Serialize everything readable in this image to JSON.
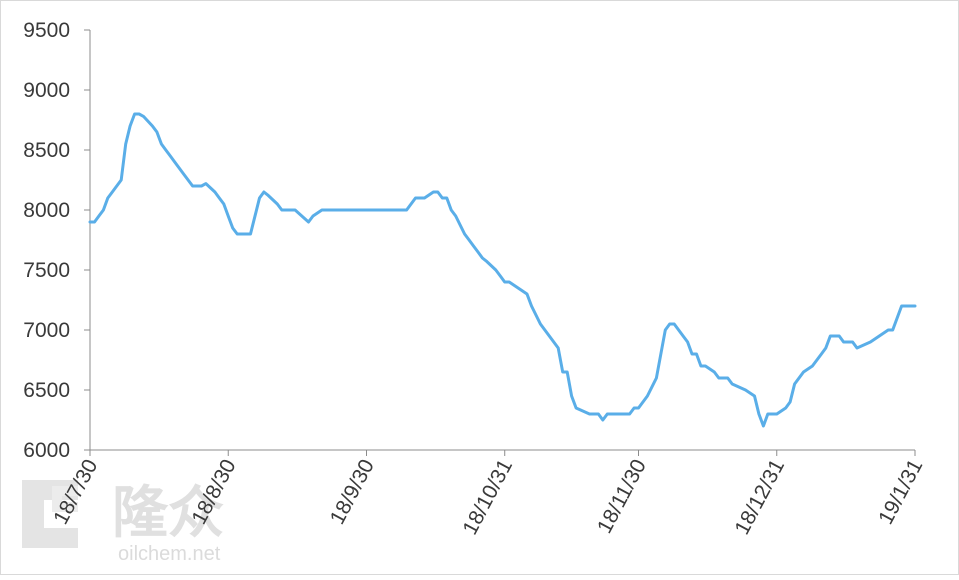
{
  "watermark": {
    "brand": "隆众",
    "url": "oilchem.net"
  },
  "chart_data": {
    "type": "line",
    "title": "",
    "xlabel": "",
    "ylabel": "",
    "ylim": [
      6000,
      9500
    ],
    "yticks": [
      6000,
      6500,
      7000,
      7500,
      8000,
      8500,
      9000,
      9500
    ],
    "grid": false,
    "legend": "none",
    "x_tick_labels": [
      "18/7/30",
      "18/8/30",
      "18/9/30",
      "18/10/31",
      "18/11/30",
      "18/12/31",
      "19/1/31"
    ],
    "colors": {
      "line": "#5aaee8",
      "axis": "#8c8c8c",
      "text": "#3a3a3a"
    },
    "series": [
      {
        "x": [
          "2018-07-30",
          "2018-07-31",
          "2018-08-01",
          "2018-08-02",
          "2018-08-03",
          "2018-08-04",
          "2018-08-06",
          "2018-08-07",
          "2018-08-08",
          "2018-08-09",
          "2018-08-10",
          "2018-08-11",
          "2018-08-13",
          "2018-08-14",
          "2018-08-15",
          "2018-08-16",
          "2018-08-17",
          "2018-08-18",
          "2018-08-20",
          "2018-08-21",
          "2018-08-22",
          "2018-08-23",
          "2018-08-24",
          "2018-08-25",
          "2018-08-27",
          "2018-08-28",
          "2018-08-29",
          "2018-08-30",
          "2018-08-31",
          "2018-09-01",
          "2018-09-03",
          "2018-09-04",
          "2018-09-05",
          "2018-09-06",
          "2018-09-07",
          "2018-09-08",
          "2018-09-10",
          "2018-09-11",
          "2018-09-12",
          "2018-09-14",
          "2018-09-17",
          "2018-09-18",
          "2018-09-20",
          "2018-09-28",
          "2018-10-08",
          "2018-10-09",
          "2018-10-11",
          "2018-10-12",
          "2018-10-13",
          "2018-10-15",
          "2018-10-16",
          "2018-10-17",
          "2018-10-18",
          "2018-10-19",
          "2018-10-20",
          "2018-10-22",
          "2018-10-23",
          "2018-10-24",
          "2018-10-25",
          "2018-10-26",
          "2018-10-27",
          "2018-10-29",
          "2018-10-30",
          "2018-10-31",
          "2018-11-01",
          "2018-11-03",
          "2018-11-05",
          "2018-11-06",
          "2018-11-08",
          "2018-11-10",
          "2018-11-12",
          "2018-11-13",
          "2018-11-14",
          "2018-11-15",
          "2018-11-16",
          "2018-11-19",
          "2018-11-21",
          "2018-11-22",
          "2018-11-23",
          "2018-11-26",
          "2018-11-28",
          "2018-11-29",
          "2018-11-30",
          "2018-12-02",
          "2018-12-04",
          "2018-12-06",
          "2018-12-07",
          "2018-12-08",
          "2018-12-10",
          "2018-12-11",
          "2018-12-12",
          "2018-12-13",
          "2018-12-14",
          "2018-12-15",
          "2018-12-17",
          "2018-12-18",
          "2018-12-19",
          "2018-12-20",
          "2018-12-21",
          "2018-12-24",
          "2018-12-26",
          "2018-12-27",
          "2018-12-28",
          "2018-12-29",
          "2018-12-31",
          "2019-01-02",
          "2019-01-03",
          "2019-01-04",
          "2019-01-06",
          "2019-01-08",
          "2019-01-09",
          "2019-01-10",
          "2019-01-11",
          "2019-01-12",
          "2019-01-14",
          "2019-01-15",
          "2019-01-16",
          "2019-01-17",
          "2019-01-18",
          "2019-01-21",
          "2019-01-23",
          "2019-01-25",
          "2019-01-26",
          "2019-01-28",
          "2019-01-30",
          "2019-01-31"
        ],
        "values": [
          7900,
          7900,
          7950,
          8000,
          8100,
          8150,
          8250,
          8550,
          8700,
          8800,
          8800,
          8780,
          8700,
          8650,
          8550,
          8500,
          8450,
          8400,
          8300,
          8250,
          8200,
          8200,
          8200,
          8220,
          8150,
          8100,
          8050,
          7950,
          7850,
          7800,
          7800,
          7800,
          7950,
          8100,
          8150,
          8120,
          8050,
          8000,
          8000,
          8000,
          7900,
          7950,
          8000,
          8000,
          8000,
          8000,
          8100,
          8100,
          8100,
          8150,
          8150,
          8100,
          8100,
          8000,
          7950,
          7800,
          7750,
          7700,
          7650,
          7600,
          7570,
          7500,
          7450,
          7400,
          7400,
          7350,
          7300,
          7200,
          7050,
          6950,
          6850,
          6650,
          6650,
          6450,
          6350,
          6300,
          6300,
          6250,
          6300,
          6300,
          6300,
          6350,
          6350,
          6450,
          6600,
          7000,
          7050,
          7050,
          6950,
          6900,
          6800,
          6800,
          6700,
          6700,
          6650,
          6600,
          6600,
          6600,
          6550,
          6500,
          6450,
          6300,
          6200,
          6300,
          6300,
          6350,
          6400,
          6550,
          6650,
          6700,
          6750,
          6800,
          6850,
          6950,
          6950,
          6900,
          6900,
          6900,
          6850,
          6900,
          6950,
          7000,
          7000,
          7200,
          7200,
          7200
        ]
      }
    ]
  }
}
